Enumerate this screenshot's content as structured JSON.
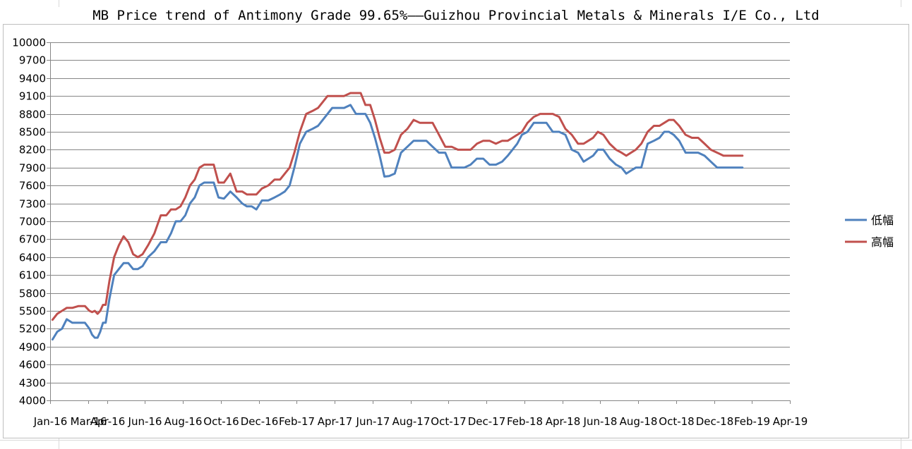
{
  "chart_data": {
    "type": "line",
    "title": "MB Price trend of Antimony Grade 99.65%——Guizhou Provincial Metals & Minerals I/E Co., Ltd",
    "xlabel": "",
    "ylabel": "",
    "ylim": [
      4000,
      10000
    ],
    "yticks": [
      "10000",
      "9700",
      "9400",
      "9100",
      "8800",
      "8500",
      "8200",
      "7900",
      "7600",
      "7300",
      "7000",
      "6700",
      "6400",
      "6100",
      "5800",
      "5500",
      "5200",
      "4900",
      "4600",
      "4300",
      "4000"
    ],
    "xlim": [
      "Jan-16",
      "Apr-19"
    ],
    "xticks": [
      "Jan-16",
      "Mar-16",
      "Apr-16",
      "Jun-16",
      "Aug-16",
      "Oct-16",
      "Dec-16",
      "Feb-17",
      "Apr-17",
      "Jun-17",
      "Aug-17",
      "Oct-17",
      "Dec-17",
      "Feb-18",
      "Apr-18",
      "Jun-18",
      "Aug-18",
      "Oct-18",
      "Dec-18",
      "Feb-19",
      "Apr-19"
    ],
    "grid": true,
    "legend_position": "right",
    "series": [
      {
        "name": "低幅",
        "color": "#4f81bd",
        "points": [
          [
            "Jan-16",
            5020
          ],
          [
            "Jan-16",
            5150
          ],
          [
            "Jan-16",
            5200
          ],
          [
            "Jan-16",
            5360
          ],
          [
            "Feb-16",
            5300
          ],
          [
            "Feb-16",
            5300
          ],
          [
            "Feb-16",
            5300
          ],
          [
            "Mar-16",
            5200
          ],
          [
            "Mar-16",
            5100
          ],
          [
            "Mar-16",
            5050
          ],
          [
            "Mar-16",
            5050
          ],
          [
            "Mar-16",
            5150
          ],
          [
            "Mar-16",
            5300
          ],
          [
            "Mar-16",
            5300
          ],
          [
            "Apr-16",
            5700
          ],
          [
            "Apr-16",
            6100
          ],
          [
            "Apr-16",
            6200
          ],
          [
            "Apr-16",
            6300
          ],
          [
            "May-16",
            6300
          ],
          [
            "May-16",
            6200
          ],
          [
            "May-16",
            6200
          ],
          [
            "May-16",
            6250
          ],
          [
            "Jun-16",
            6400
          ],
          [
            "Jun-16",
            6500
          ],
          [
            "Jun-16",
            6650
          ],
          [
            "Jul-16",
            6650
          ],
          [
            "Jul-16",
            6800
          ],
          [
            "Jul-16",
            7000
          ],
          [
            "Jul-16",
            7000
          ],
          [
            "Aug-16",
            7100
          ],
          [
            "Aug-16",
            7300
          ],
          [
            "Aug-16",
            7400
          ],
          [
            "Aug-16",
            7600
          ],
          [
            "Sep-16",
            7650
          ],
          [
            "Sep-16",
            7650
          ],
          [
            "Sep-16",
            7650
          ],
          [
            "Sep-16",
            7400
          ],
          [
            "Oct-16",
            7380
          ],
          [
            "Oct-16",
            7500
          ],
          [
            "Oct-16",
            7400
          ],
          [
            "Nov-16",
            7300
          ],
          [
            "Nov-16",
            7250
          ],
          [
            "Nov-16",
            7250
          ],
          [
            "Nov-16",
            7200
          ],
          [
            "Dec-16",
            7350
          ],
          [
            "Dec-16",
            7350
          ],
          [
            "Dec-16",
            7400
          ],
          [
            "Jan-17",
            7450
          ],
          [
            "Jan-17",
            7500
          ],
          [
            "Jan-17",
            7600
          ],
          [
            "Jan-17",
            7900
          ],
          [
            "Feb-17",
            8300
          ],
          [
            "Feb-17",
            8500
          ],
          [
            "Feb-17",
            8550
          ],
          [
            "Mar-17",
            8600
          ],
          [
            "Mar-17",
            8700
          ],
          [
            "Mar-17",
            8800
          ],
          [
            "Mar-17",
            8900
          ],
          [
            "Apr-17",
            8900
          ],
          [
            "Apr-17",
            8900
          ],
          [
            "Apr-17",
            8950
          ],
          [
            "May-17",
            8800
          ],
          [
            "May-17",
            8800
          ],
          [
            "May-17",
            8800
          ],
          [
            "May-17",
            8650
          ],
          [
            "Jun-17",
            8400
          ],
          [
            "Jun-17",
            8100
          ],
          [
            "Jun-17",
            7750
          ],
          [
            "Jun-17",
            7760
          ],
          [
            "Jul-17",
            7800
          ],
          [
            "Jul-17",
            8150
          ],
          [
            "Jul-17",
            8250
          ],
          [
            "Aug-17",
            8350
          ],
          [
            "Aug-17",
            8350
          ],
          [
            "Aug-17",
            8350
          ],
          [
            "Sep-17",
            8250
          ],
          [
            "Sep-17",
            8150
          ],
          [
            "Sep-17",
            8150
          ],
          [
            "Oct-17",
            7900
          ],
          [
            "Oct-17",
            7900
          ],
          [
            "Oct-17",
            7900
          ],
          [
            "Nov-17",
            7950
          ],
          [
            "Nov-17",
            8050
          ],
          [
            "Nov-17",
            8050
          ],
          [
            "Dec-17",
            7950
          ],
          [
            "Dec-17",
            7950
          ],
          [
            "Dec-17",
            8000
          ],
          [
            "Jan-18",
            8100
          ],
          [
            "Jan-18",
            8200
          ],
          [
            "Jan-18",
            8300
          ],
          [
            "Jan-18",
            8450
          ],
          [
            "Feb-18",
            8500
          ],
          [
            "Feb-18",
            8650
          ],
          [
            "Feb-18",
            8650
          ],
          [
            "Mar-18",
            8650
          ],
          [
            "Mar-18",
            8500
          ],
          [
            "Mar-18",
            8500
          ],
          [
            "Apr-18",
            8450
          ],
          [
            "Apr-18",
            8200
          ],
          [
            "Apr-18",
            8150
          ],
          [
            "May-18",
            8000
          ],
          [
            "May-18",
            8050
          ],
          [
            "May-18",
            8100
          ],
          [
            "May-18",
            8200
          ],
          [
            "Jun-18",
            8200
          ],
          [
            "Jun-18",
            8050
          ],
          [
            "Jun-18",
            7950
          ],
          [
            "Jul-18",
            7900
          ],
          [
            "Jul-18",
            7800
          ],
          [
            "Jul-18",
            7850
          ],
          [
            "Jul-18",
            7900
          ],
          [
            "Aug-18",
            7900
          ],
          [
            "Aug-18",
            8300
          ],
          [
            "Aug-18",
            8350
          ],
          [
            "Sep-18",
            8400
          ],
          [
            "Sep-18",
            8500
          ],
          [
            "Sep-18",
            8500
          ],
          [
            "Sep-18",
            8450
          ],
          [
            "Oct-18",
            8350
          ],
          [
            "Oct-18",
            8150
          ],
          [
            "Oct-18",
            8150
          ],
          [
            "Nov-18",
            8150
          ],
          [
            "Nov-18",
            8100
          ],
          [
            "Nov-18",
            8000
          ],
          [
            "Dec-18",
            7900
          ],
          [
            "Dec-18",
            7900
          ],
          [
            "Dec-18",
            7900
          ],
          [
            "Jan-19",
            7900
          ]
        ]
      },
      {
        "name": "高幅",
        "color": "#c0504d",
        "points": [
          [
            "Jan-16",
            5350
          ],
          [
            "Jan-16",
            5450
          ],
          [
            "Jan-16",
            5500
          ],
          [
            "Jan-16",
            5550
          ],
          [
            "Feb-16",
            5550
          ],
          [
            "Feb-16",
            5580
          ],
          [
            "Feb-16",
            5580
          ],
          [
            "Mar-16",
            5500
          ],
          [
            "Mar-16",
            5480
          ],
          [
            "Mar-16",
            5500
          ],
          [
            "Mar-16",
            5450
          ],
          [
            "Mar-16",
            5500
          ],
          [
            "Mar-16",
            5600
          ],
          [
            "Mar-16",
            5600
          ],
          [
            "Apr-16",
            6000
          ],
          [
            "Apr-16",
            6400
          ],
          [
            "Apr-16",
            6600
          ],
          [
            "Apr-16",
            6750
          ],
          [
            "May-16",
            6650
          ],
          [
            "May-16",
            6450
          ],
          [
            "May-16",
            6400
          ],
          [
            "May-16",
            6450
          ],
          [
            "Jun-16",
            6600
          ],
          [
            "Jun-16",
            6800
          ],
          [
            "Jun-16",
            7100
          ],
          [
            "Jul-16",
            7100
          ],
          [
            "Jul-16",
            7200
          ],
          [
            "Jul-16",
            7200
          ],
          [
            "Jul-16",
            7250
          ],
          [
            "Aug-16",
            7400
          ],
          [
            "Aug-16",
            7600
          ],
          [
            "Aug-16",
            7700
          ],
          [
            "Aug-16",
            7900
          ],
          [
            "Sep-16",
            7950
          ],
          [
            "Sep-16",
            7950
          ],
          [
            "Sep-16",
            7950
          ],
          [
            "Sep-16",
            7650
          ],
          [
            "Oct-16",
            7650
          ],
          [
            "Oct-16",
            7800
          ],
          [
            "Oct-16",
            7500
          ],
          [
            "Nov-16",
            7500
          ],
          [
            "Nov-16",
            7450
          ],
          [
            "Nov-16",
            7450
          ],
          [
            "Nov-16",
            7450
          ],
          [
            "Dec-16",
            7550
          ],
          [
            "Dec-16",
            7600
          ],
          [
            "Dec-16",
            7700
          ],
          [
            "Jan-17",
            7700
          ],
          [
            "Jan-17",
            7800
          ],
          [
            "Jan-17",
            7900
          ],
          [
            "Jan-17",
            8150
          ],
          [
            "Feb-17",
            8500
          ],
          [
            "Feb-17",
            8800
          ],
          [
            "Feb-17",
            8850
          ],
          [
            "Mar-17",
            8900
          ],
          [
            "Mar-17",
            9000
          ],
          [
            "Mar-17",
            9100
          ],
          [
            "Mar-17",
            9100
          ],
          [
            "Apr-17",
            9100
          ],
          [
            "Apr-17",
            9100
          ],
          [
            "Apr-17",
            9150
          ],
          [
            "May-17",
            9150
          ],
          [
            "May-17",
            9150
          ],
          [
            "May-17",
            8950
          ],
          [
            "May-17",
            8950
          ],
          [
            "Jun-17",
            8700
          ],
          [
            "Jun-17",
            8400
          ],
          [
            "Jun-17",
            8150
          ],
          [
            "Jun-17",
            8150
          ],
          [
            "Jul-17",
            8200
          ],
          [
            "Jul-17",
            8450
          ],
          [
            "Jul-17",
            8550
          ],
          [
            "Aug-17",
            8700
          ],
          [
            "Aug-17",
            8650
          ],
          [
            "Aug-17",
            8650
          ],
          [
            "Sep-17",
            8650
          ],
          [
            "Sep-17",
            8450
          ],
          [
            "Sep-17",
            8250
          ],
          [
            "Oct-17",
            8250
          ],
          [
            "Oct-17",
            8200
          ],
          [
            "Oct-17",
            8200
          ],
          [
            "Nov-17",
            8200
          ],
          [
            "Nov-17",
            8300
          ],
          [
            "Nov-17",
            8350
          ],
          [
            "Dec-17",
            8350
          ],
          [
            "Dec-17",
            8300
          ],
          [
            "Dec-17",
            8350
          ],
          [
            "Jan-18",
            8350
          ],
          [
            "Jan-18",
            8400
          ],
          [
            "Jan-18",
            8450
          ],
          [
            "Jan-18",
            8500
          ],
          [
            "Feb-18",
            8650
          ],
          [
            "Feb-18",
            8750
          ],
          [
            "Feb-18",
            8800
          ],
          [
            "Mar-18",
            8800
          ],
          [
            "Mar-18",
            8800
          ],
          [
            "Mar-18",
            8750
          ],
          [
            "Apr-18",
            8550
          ],
          [
            "Apr-18",
            8450
          ],
          [
            "Apr-18",
            8300
          ],
          [
            "May-18",
            8300
          ],
          [
            "May-18",
            8350
          ],
          [
            "May-18",
            8400
          ],
          [
            "May-18",
            8500
          ],
          [
            "Jun-18",
            8450
          ],
          [
            "Jun-18",
            8300
          ],
          [
            "Jun-18",
            8200
          ],
          [
            "Jul-18",
            8150
          ],
          [
            "Jul-18",
            8100
          ],
          [
            "Jul-18",
            8150
          ],
          [
            "Jul-18",
            8200
          ],
          [
            "Aug-18",
            8300
          ],
          [
            "Aug-18",
            8500
          ],
          [
            "Aug-18",
            8600
          ],
          [
            "Sep-18",
            8600
          ],
          [
            "Sep-18",
            8650
          ],
          [
            "Sep-18",
            8700
          ],
          [
            "Sep-18",
            8700
          ],
          [
            "Oct-18",
            8600
          ],
          [
            "Oct-18",
            8450
          ],
          [
            "Oct-18",
            8400
          ],
          [
            "Nov-18",
            8400
          ],
          [
            "Nov-18",
            8300
          ],
          [
            "Nov-18",
            8200
          ],
          [
            "Dec-18",
            8150
          ],
          [
            "Dec-18",
            8100
          ],
          [
            "Dec-18",
            8100
          ],
          [
            "Jan-19",
            8100
          ]
        ]
      }
    ]
  }
}
